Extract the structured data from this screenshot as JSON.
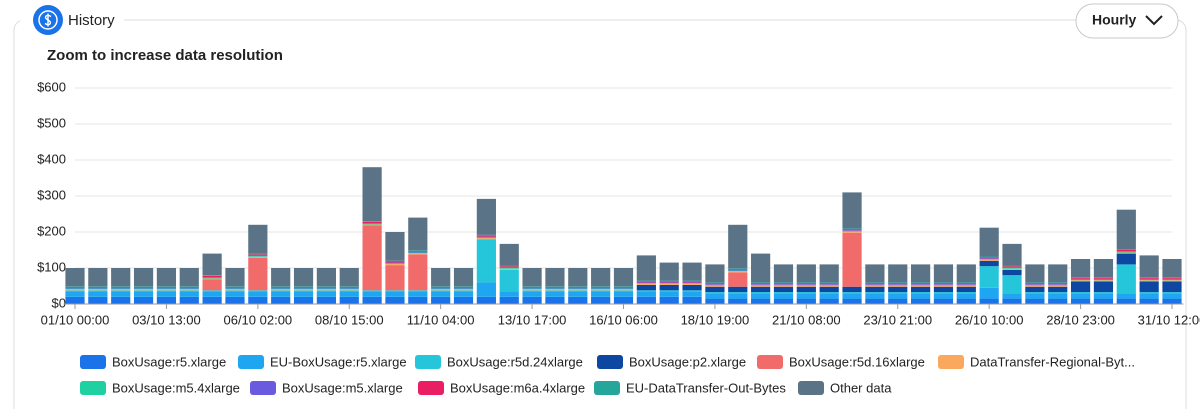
{
  "header": {
    "title": "History",
    "dropdown": "Hourly"
  },
  "chart_data": {
    "type": "stacked-bar",
    "title": "Zoom to increase data resolution",
    "categories": [
      "01/10 00:00",
      null,
      null,
      null,
      "03/10 13:00",
      null,
      null,
      null,
      "06/10 02:00",
      null,
      null,
      null,
      "08/10 15:00",
      null,
      null,
      null,
      "11/10 04:00",
      null,
      null,
      null,
      "13/10 17:00",
      null,
      null,
      null,
      "16/10 06:00",
      null,
      null,
      null,
      "18/10 19:00",
      null,
      null,
      null,
      "21/10 08:00",
      null,
      null,
      null,
      "23/10 21:00",
      null,
      null,
      null,
      "26/10 10:00",
      null,
      null,
      null,
      "28/10 23:00",
      null,
      null,
      null,
      "31/10 12:00"
    ],
    "ylim": [
      0,
      600
    ],
    "yticks": [
      {
        "value": 0,
        "label": "$0"
      },
      {
        "value": 100,
        "label": "$100"
      },
      {
        "value": 200,
        "label": "$200"
      },
      {
        "value": 300,
        "label": "$300"
      },
      {
        "value": 400,
        "label": "$400"
      },
      {
        "value": 500,
        "label": "$500"
      },
      {
        "value": 600,
        "label": "$600"
      }
    ],
    "grid": true,
    "series": [
      {
        "name": "BoxUsage:r5.xlarge",
        "color": "#1a73e8",
        "values": [
          20,
          20,
          20,
          20,
          20,
          20,
          20,
          20,
          20,
          20,
          20,
          20,
          20,
          20,
          20,
          20,
          20,
          20,
          20,
          20,
          20,
          20,
          20,
          20,
          20,
          20,
          20,
          20,
          15,
          15,
          15,
          15,
          15,
          15,
          15,
          15,
          15,
          15,
          15,
          15,
          15,
          15,
          15,
          15,
          15,
          15,
          15,
          15,
          15
        ]
      },
      {
        "name": "EU-BoxUsage:r5.xlarge",
        "color": "#1ea7f0",
        "values": [
          15,
          15,
          15,
          15,
          15,
          15,
          15,
          15,
          15,
          15,
          15,
          15,
          15,
          15,
          15,
          15,
          15,
          15,
          40,
          15,
          15,
          15,
          15,
          15,
          15,
          15,
          15,
          15,
          15,
          15,
          15,
          15,
          15,
          15,
          15,
          15,
          15,
          15,
          15,
          15,
          30,
          15,
          15,
          15,
          15,
          15,
          15,
          15,
          15
        ]
      },
      {
        "name": "BoxUsage:r5d.24xlarge",
        "color": "#26c6da",
        "values": [
          3,
          3,
          3,
          3,
          3,
          3,
          3,
          3,
          3,
          3,
          3,
          3,
          3,
          3,
          3,
          3,
          3,
          3,
          120,
          60,
          3,
          3,
          3,
          3,
          3,
          3,
          3,
          3,
          3,
          3,
          3,
          3,
          3,
          3,
          3,
          3,
          3,
          3,
          3,
          3,
          60,
          50,
          3,
          3,
          3,
          3,
          80,
          3,
          3
        ]
      },
      {
        "name": "BoxUsage:p2.xlarge",
        "color": "#0d47a1",
        "values": [
          0,
          0,
          0,
          0,
          0,
          0,
          0,
          0,
          0,
          0,
          0,
          0,
          0,
          0,
          0,
          0,
          0,
          0,
          0,
          0,
          0,
          0,
          0,
          0,
          0,
          15,
          15,
          15,
          15,
          15,
          15,
          15,
          15,
          15,
          15,
          15,
          15,
          15,
          15,
          15,
          15,
          15,
          15,
          15,
          30,
          30,
          30,
          30,
          30
        ]
      },
      {
        "name": "BoxUsage:r5d.16xlarge",
        "color": "#f26b6b",
        "values": [
          0,
          0,
          0,
          0,
          0,
          0,
          30,
          0,
          90,
          0,
          0,
          0,
          0,
          180,
          70,
          100,
          0,
          0,
          0,
          0,
          0,
          0,
          0,
          0,
          0,
          0,
          0,
          0,
          0,
          40,
          0,
          0,
          0,
          0,
          150,
          0,
          0,
          0,
          0,
          0,
          0,
          0,
          0,
          0,
          0,
          0,
          0,
          0,
          0
        ]
      },
      {
        "name": "DataTransfer-Regional-Byt...",
        "color": "#f9a85d",
        "values": [
          3,
          3,
          3,
          3,
          3,
          3,
          3,
          3,
          3,
          3,
          3,
          3,
          3,
          3,
          3,
          3,
          3,
          3,
          3,
          3,
          3,
          3,
          3,
          3,
          3,
          3,
          3,
          3,
          3,
          3,
          3,
          3,
          3,
          3,
          3,
          3,
          3,
          3,
          3,
          3,
          3,
          3,
          3,
          3,
          3,
          3,
          3,
          3,
          3
        ]
      },
      {
        "name": "BoxUsage:m5.4xlarge",
        "color": "#1fd1a1",
        "values": [
          2,
          2,
          2,
          2,
          2,
          2,
          2,
          2,
          2,
          2,
          2,
          2,
          2,
          2,
          2,
          2,
          2,
          2,
          2,
          2,
          2,
          2,
          2,
          2,
          2,
          2,
          2,
          2,
          2,
          2,
          2,
          2,
          2,
          2,
          2,
          2,
          2,
          2,
          2,
          2,
          2,
          2,
          2,
          2,
          2,
          2,
          2,
          2,
          2
        ]
      },
      {
        "name": "BoxUsage:m5.xlarge",
        "color": "#6a5ae0",
        "values": [
          2,
          2,
          2,
          2,
          2,
          2,
          2,
          2,
          2,
          2,
          2,
          2,
          2,
          2,
          2,
          2,
          2,
          2,
          2,
          2,
          2,
          2,
          2,
          2,
          2,
          2,
          2,
          2,
          2,
          2,
          2,
          2,
          2,
          2,
          2,
          2,
          2,
          2,
          2,
          2,
          2,
          2,
          2,
          2,
          2,
          2,
          2,
          2,
          2
        ]
      },
      {
        "name": "BoxUsage:m6a.4xlarge",
        "color": "#e91e63",
        "values": [
          3,
          3,
          3,
          3,
          3,
          3,
          3,
          3,
          3,
          3,
          3,
          3,
          3,
          3,
          3,
          3,
          3,
          3,
          3,
          3,
          3,
          3,
          3,
          3,
          3,
          3,
          3,
          3,
          3,
          3,
          3,
          3,
          3,
          3,
          3,
          3,
          3,
          3,
          3,
          3,
          3,
          3,
          3,
          3,
          3,
          3,
          3,
          3,
          3
        ]
      },
      {
        "name": "EU-DataTransfer-Out-Bytes",
        "color": "#26a69a",
        "values": [
          2,
          2,
          2,
          2,
          2,
          2,
          2,
          2,
          2,
          2,
          2,
          2,
          2,
          2,
          2,
          2,
          2,
          2,
          2,
          2,
          2,
          2,
          2,
          2,
          2,
          2,
          2,
          2,
          2,
          2,
          2,
          2,
          2,
          2,
          2,
          2,
          2,
          2,
          2,
          2,
          2,
          2,
          2,
          2,
          2,
          2,
          2,
          2,
          2
        ]
      },
      {
        "name": "Other data",
        "color": "#5b7386",
        "values": [
          50,
          50,
          50,
          50,
          50,
          50,
          60,
          50,
          80,
          50,
          50,
          50,
          50,
          150,
          80,
          90,
          50,
          50,
          100,
          60,
          50,
          50,
          50,
          50,
          50,
          70,
          50,
          50,
          50,
          120,
          80,
          50,
          50,
          50,
          100,
          50,
          50,
          50,
          50,
          50,
          80,
          60,
          50,
          50,
          50,
          50,
          110,
          60,
          50
        ]
      }
    ]
  }
}
